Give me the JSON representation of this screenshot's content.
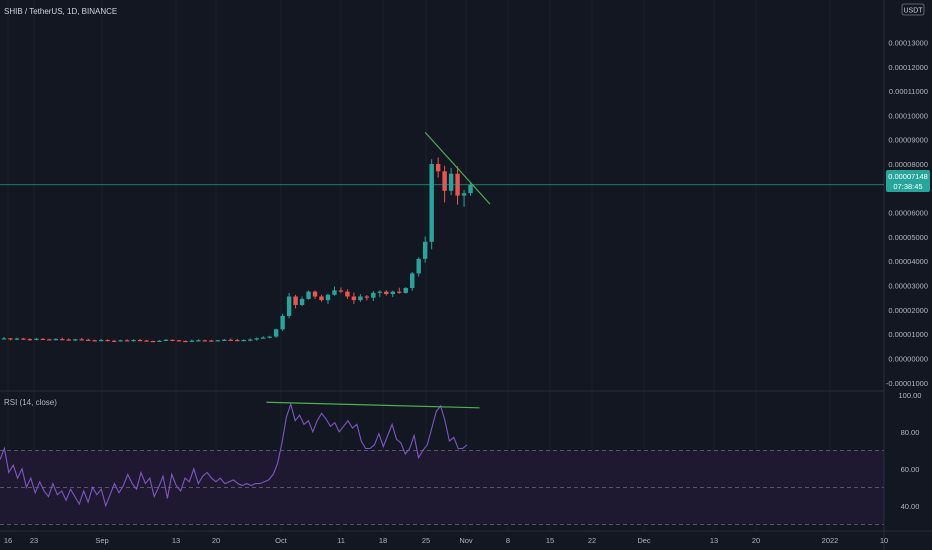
{
  "header": {
    "symbol_info": "SHIB / TetherUS, 1D, BINANCE",
    "currency": "USDT"
  },
  "price_badge": {
    "price": "0.00007148",
    "countdown": "07:38:45"
  },
  "rsi_label": "RSI (14, close)",
  "colors": {
    "background": "#131722",
    "up": "#26a69a",
    "down": "#ef5350",
    "rsi_line": "#7e57c2",
    "rsi_band": "#1e1930",
    "trendline": "#4caf50",
    "price_line": "#26a69a",
    "axis_text": "#b2b5be"
  },
  "chart_data": [
    {
      "type": "candlestick",
      "title": "SHIB / TetherUS, 1D, BINANCE",
      "y_ticks": [
        "0.00013000",
        "0.00012000",
        "0.00011000",
        "0.00010000",
        "0.00009000",
        "0.00008000",
        "0.00007000",
        "0.00006000",
        "0.00005000",
        "0.00004000",
        "0.00003000",
        "0.00002000",
        "0.00001000",
        "0.00000000",
        "-0.00001000"
      ],
      "y_range": [
        -1.05e-05,
        0.000145
      ],
      "x_ticks": [
        "16",
        "23",
        "Sep",
        "13",
        "20",
        "Oct",
        "11",
        "18",
        "25",
        "Nov",
        "8",
        "15",
        "22",
        "Dec",
        "13",
        "20",
        "2022",
        "10"
      ],
      "current_price": 7.148e-05,
      "series": [
        {
          "name": "SHIB/USDT",
          "close": [
            8.1e-06,
            8.3e-06,
            7.9e-06,
            8.2e-06,
            8e-06,
            7.8e-06,
            8.1e-06,
            7.9e-06,
            7.7e-06,
            8e-06,
            7.8e-06,
            7.6e-06,
            7.9e-06,
            7.7e-06,
            7.5e-06,
            7.4e-06,
            7.6e-06,
            7.3e-06,
            7.2e-06,
            7.5e-06,
            7.3e-06,
            7.6e-06,
            7.4e-06,
            7.2e-06,
            7.1e-06,
            7.3e-06,
            7.7e-06,
            7.5e-06,
            7.2e-06,
            7.1e-06,
            7.3e-06,
            7.5e-06,
            7.4e-06,
            7.3e-06,
            7.5e-06,
            7.7e-06,
            7.6e-06,
            7.4e-06,
            7.6e-06,
            7.8e-06,
            8.3e-06,
            8.6e-06,
            9e-06,
            1.2e-05,
            1.75e-05,
            2.55e-05,
            2.2e-05,
            2.45e-05,
            2.75e-05,
            2.55e-05,
            2.4e-05,
            2.62e-05,
            2.8e-05,
            2.75e-05,
            2.55e-05,
            2.4e-05,
            2.55e-05,
            2.5e-05,
            2.7e-05,
            2.75e-05,
            2.65e-05,
            2.75e-05,
            2.7e-05,
            2.9e-05,
            3.5e-05,
            4.1e-05,
            4.8e-05,
            8e-05,
            7.7e-05,
            6.9e-05,
            7.6e-05,
            6.7e-05,
            6.8e-05,
            7.15e-05
          ]
        }
      ],
      "trendline": {
        "from": {
          "index": 66,
          "value": 9.3e-05
        },
        "to": {
          "index": 76,
          "value": 6.35e-05
        }
      }
    },
    {
      "type": "line",
      "title": "RSI (14, close)",
      "y_ticks": [
        "100.00",
        "80.00",
        "60.00",
        "40.00"
      ],
      "y_range": [
        28,
        101
      ],
      "bands": {
        "upper": 70,
        "middle": 50,
        "lower": 30
      },
      "series": [
        {
          "name": "RSI (14, close)",
          "values": [
            65,
            71,
            58,
            62,
            55,
            60,
            50,
            55,
            47,
            53,
            48,
            45,
            52,
            46,
            48,
            43,
            49,
            45,
            41,
            48,
            42,
            50,
            46,
            49,
            40,
            46,
            52,
            47,
            51,
            57,
            52,
            49,
            58,
            52,
            55,
            45,
            50,
            56,
            44,
            57,
            51,
            48,
            55,
            53,
            60,
            52,
            56,
            58,
            55,
            53,
            55,
            52,
            53,
            54,
            52,
            51,
            52,
            51,
            52,
            52,
            53,
            54,
            57,
            63,
            74,
            88,
            95,
            86,
            89,
            84,
            86,
            80,
            86,
            90,
            87,
            83,
            85,
            80,
            83,
            86,
            82,
            84,
            75,
            71,
            71,
            73,
            79,
            72,
            78,
            84,
            76,
            74,
            68,
            71,
            78,
            66,
            70,
            73,
            82,
            91,
            94,
            86,
            75,
            77,
            71,
            71,
            73
          ]
        }
      ],
      "trendline": {
        "from": {
          "index": 48,
          "value": 96
        },
        "to": {
          "index": 85,
          "value": 93
        }
      }
    }
  ]
}
